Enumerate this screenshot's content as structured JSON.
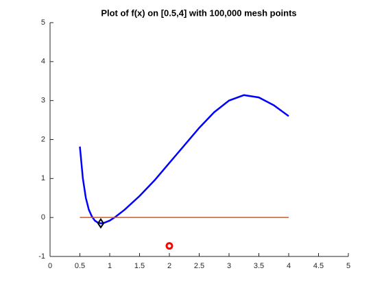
{
  "chart_data": {
    "type": "line",
    "title": "Plot of f(x) on [0.5,4] with 100,000 mesh points",
    "xlim": [
      0,
      5
    ],
    "xticks": [
      0,
      0.5,
      1,
      1.5,
      2,
      2.5,
      3,
      3.5,
      4,
      4.5,
      5
    ],
    "ylim": [
      -1,
      5
    ],
    "yticks": [
      -1,
      0,
      1,
      2,
      3,
      4,
      5
    ],
    "series": [
      {
        "color": "#0000ff",
        "style": "line",
        "x": [
          0.5,
          0.55,
          0.6,
          0.65,
          0.7,
          0.75,
          0.8,
          0.85,
          0.9,
          1.0,
          1.1,
          1.25,
          1.5,
          1.75,
          2.0,
          2.25,
          2.5,
          2.75,
          3.0,
          3.25,
          3.5,
          3.75,
          4.0
        ],
        "values": [
          1.82,
          1.0,
          0.5,
          0.2,
          0.03,
          -0.08,
          -0.13,
          -0.15,
          -0.14,
          -0.08,
          0.02,
          0.2,
          0.55,
          0.95,
          1.4,
          1.85,
          2.3,
          2.7,
          3.0,
          3.14,
          3.08,
          2.88,
          2.6
        ]
      },
      {
        "color": "#d95319",
        "style": "line",
        "x": [
          0.5,
          4
        ],
        "values": [
          0,
          0
        ]
      },
      {
        "color": "#000000",
        "style": "diamond",
        "x": [
          0.85
        ],
        "values": [
          -0.15
        ]
      },
      {
        "color": "#ff0000",
        "style": "circle",
        "x": [
          2
        ],
        "values": [
          -0.73
        ]
      }
    ]
  }
}
